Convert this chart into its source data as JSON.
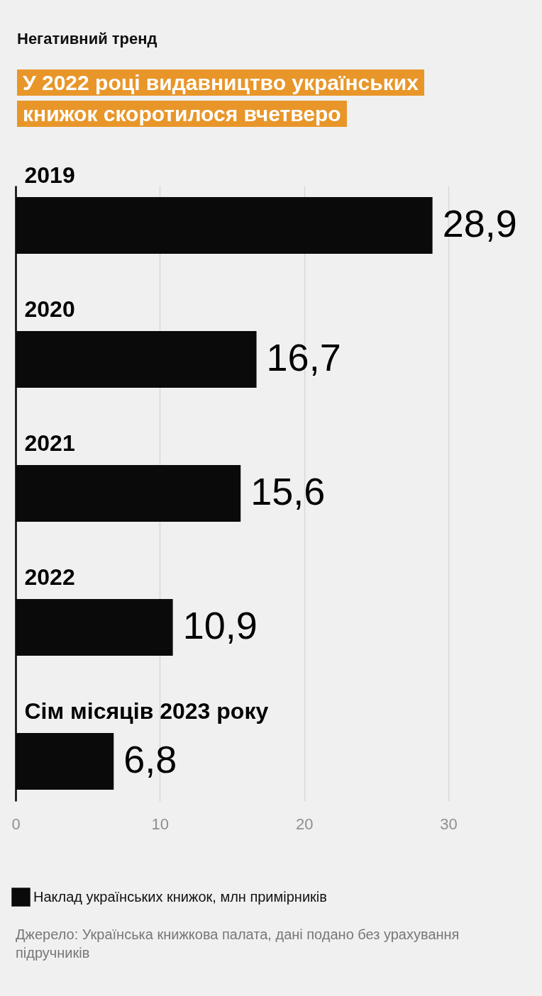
{
  "chart_data": {
    "type": "bar",
    "orientation": "horizontal",
    "subtitle": "Негативний тренд",
    "title": "У 2022 році видавництво українських книжок скоротилося вчетверо",
    "categories": [
      "2019",
      "2020",
      "2021",
      "2022",
      "Сім місяців 2023 року"
    ],
    "series": [
      {
        "name": "Наклад українських книжок, млн примірників",
        "color": "#0a0a0a",
        "values": [
          28.9,
          16.7,
          15.6,
          10.9,
          6.8
        ],
        "value_labels": [
          "28,9",
          "16,7",
          "15,6",
          "10,9",
          "6,8"
        ]
      }
    ],
    "xlim": [
      0,
      30
    ],
    "xticks": [
      0,
      10,
      20,
      30
    ],
    "grid": "x",
    "legend": "bottom left",
    "annotations": [
      "Джерело: Українська книжкова палата, дані подано без урахування підручників"
    ]
  }
}
